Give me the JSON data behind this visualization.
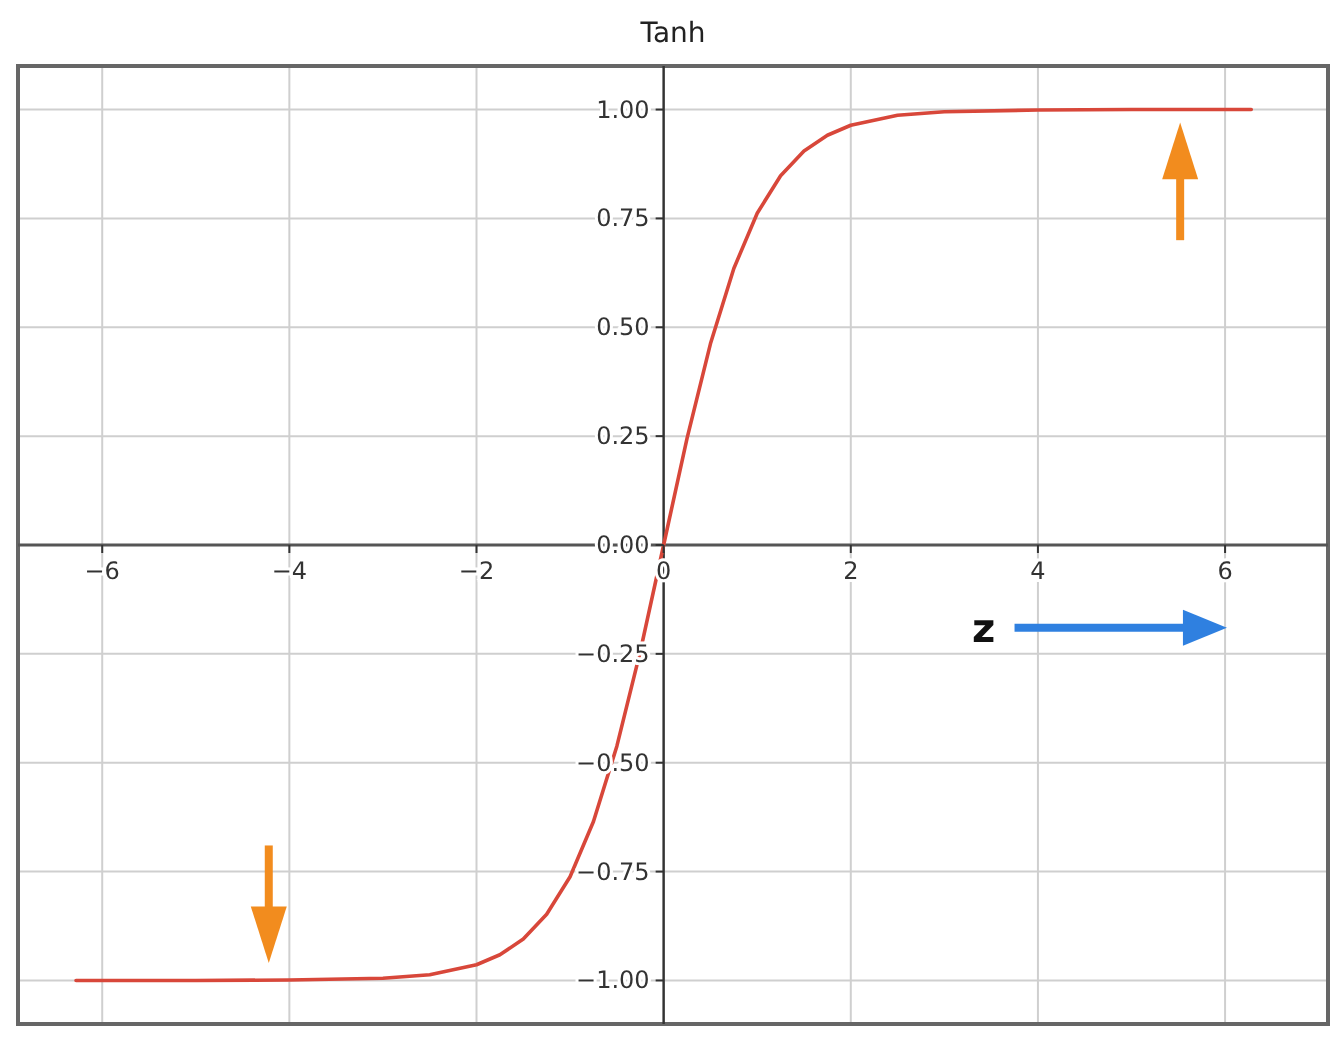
{
  "chart_data": {
    "type": "line",
    "title": "Tanh",
    "xlabel": "z",
    "x": [
      -6.28,
      -5,
      -4,
      -3,
      -2.5,
      -2,
      -1.75,
      -1.5,
      -1.25,
      -1,
      -0.75,
      -0.5,
      -0.25,
      0,
      0.25,
      0.5,
      0.75,
      1,
      1.25,
      1.5,
      1.75,
      2,
      2.5,
      3,
      4,
      5,
      6.28
    ],
    "series": [
      {
        "color": "#d8473a",
        "values": [
          -1,
          -1,
          -0.999,
          -0.995,
          -0.987,
          -0.964,
          -0.941,
          -0.905,
          -0.848,
          -0.762,
          -0.635,
          -0.462,
          -0.245,
          0,
          0.245,
          0.462,
          0.635,
          0.762,
          0.848,
          0.905,
          0.941,
          0.964,
          0.987,
          0.995,
          0.999,
          1,
          1
        ]
      }
    ],
    "xlim": [
      -6.9,
      7.1
    ],
    "ylim": [
      -1.1,
      1.1
    ],
    "xticks": [
      {
        "value": -6,
        "label": "−6"
      },
      {
        "value": -4,
        "label": "−4"
      },
      {
        "value": -2,
        "label": "−2"
      },
      0,
      2,
      4,
      6
    ],
    "yticks": [
      {
        "value": -1,
        "label": "−1.00"
      },
      {
        "value": -0.75,
        "label": "−0.75"
      },
      {
        "value": -0.5,
        "label": "−0.50"
      },
      {
        "value": -0.25,
        "label": "−0.25"
      },
      {
        "value": 0,
        "label": "0.00"
      },
      {
        "value": 0.25,
        "label": "0.25"
      },
      {
        "value": 0.5,
        "label": "0.50"
      },
      {
        "value": 0.75,
        "label": "0.75"
      },
      {
        "value": 1,
        "label": "1.00"
      }
    ],
    "grid": true,
    "line_style": "solid",
    "marker": "none"
  }
}
